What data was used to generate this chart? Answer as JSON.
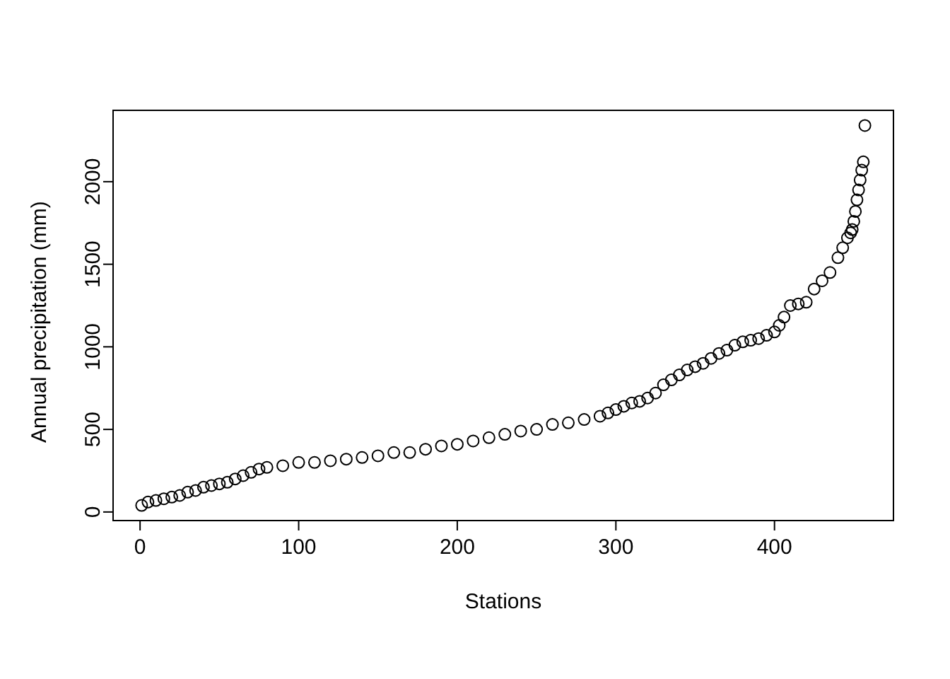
{
  "chart_data": {
    "type": "scatter",
    "xlabel": "Stations",
    "ylabel": "Annual precipitation (mm)",
    "marker": "circle",
    "xlim": [
      -17,
      475
    ],
    "ylim": [
      -52,
      2432
    ],
    "xticks": [
      0,
      100,
      200,
      300,
      400
    ],
    "yticks": [
      0,
      500,
      1000,
      1500,
      2000
    ],
    "series": [
      {
        "color": "#000000",
        "x": [
          1,
          5,
          10,
          15,
          20,
          25,
          30,
          35,
          40,
          45,
          50,
          55,
          60,
          65,
          70,
          75,
          80,
          90,
          100,
          110,
          120,
          130,
          140,
          150,
          160,
          170,
          180,
          190,
          200,
          210,
          220,
          230,
          240,
          250,
          260,
          270,
          280,
          290,
          295,
          300,
          305,
          310,
          315,
          320,
          325,
          330,
          335,
          340,
          345,
          350,
          355,
          360,
          365,
          370,
          375,
          380,
          385,
          390,
          395,
          400,
          403,
          406,
          410,
          415,
          420,
          425,
          430,
          435,
          440,
          443,
          446,
          448,
          449,
          450,
          451,
          452,
          453,
          454,
          455,
          456,
          457
        ],
        "values": [
          40,
          60,
          70,
          80,
          90,
          100,
          120,
          130,
          150,
          160,
          170,
          180,
          200,
          220,
          240,
          260,
          270,
          280,
          300,
          300,
          310,
          320,
          330,
          340,
          360,
          360,
          380,
          400,
          410,
          430,
          450,
          470,
          490,
          500,
          530,
          540,
          560,
          580,
          600,
          620,
          640,
          660,
          670,
          690,
          720,
          770,
          800,
          830,
          860,
          880,
          900,
          930,
          960,
          980,
          1010,
          1030,
          1040,
          1050,
          1070,
          1090,
          1130,
          1180,
          1250,
          1260,
          1270,
          1350,
          1400,
          1450,
          1540,
          1600,
          1660,
          1690,
          1710,
          1760,
          1820,
          1890,
          1950,
          2010,
          2070,
          2120,
          2340
        ]
      }
    ]
  }
}
